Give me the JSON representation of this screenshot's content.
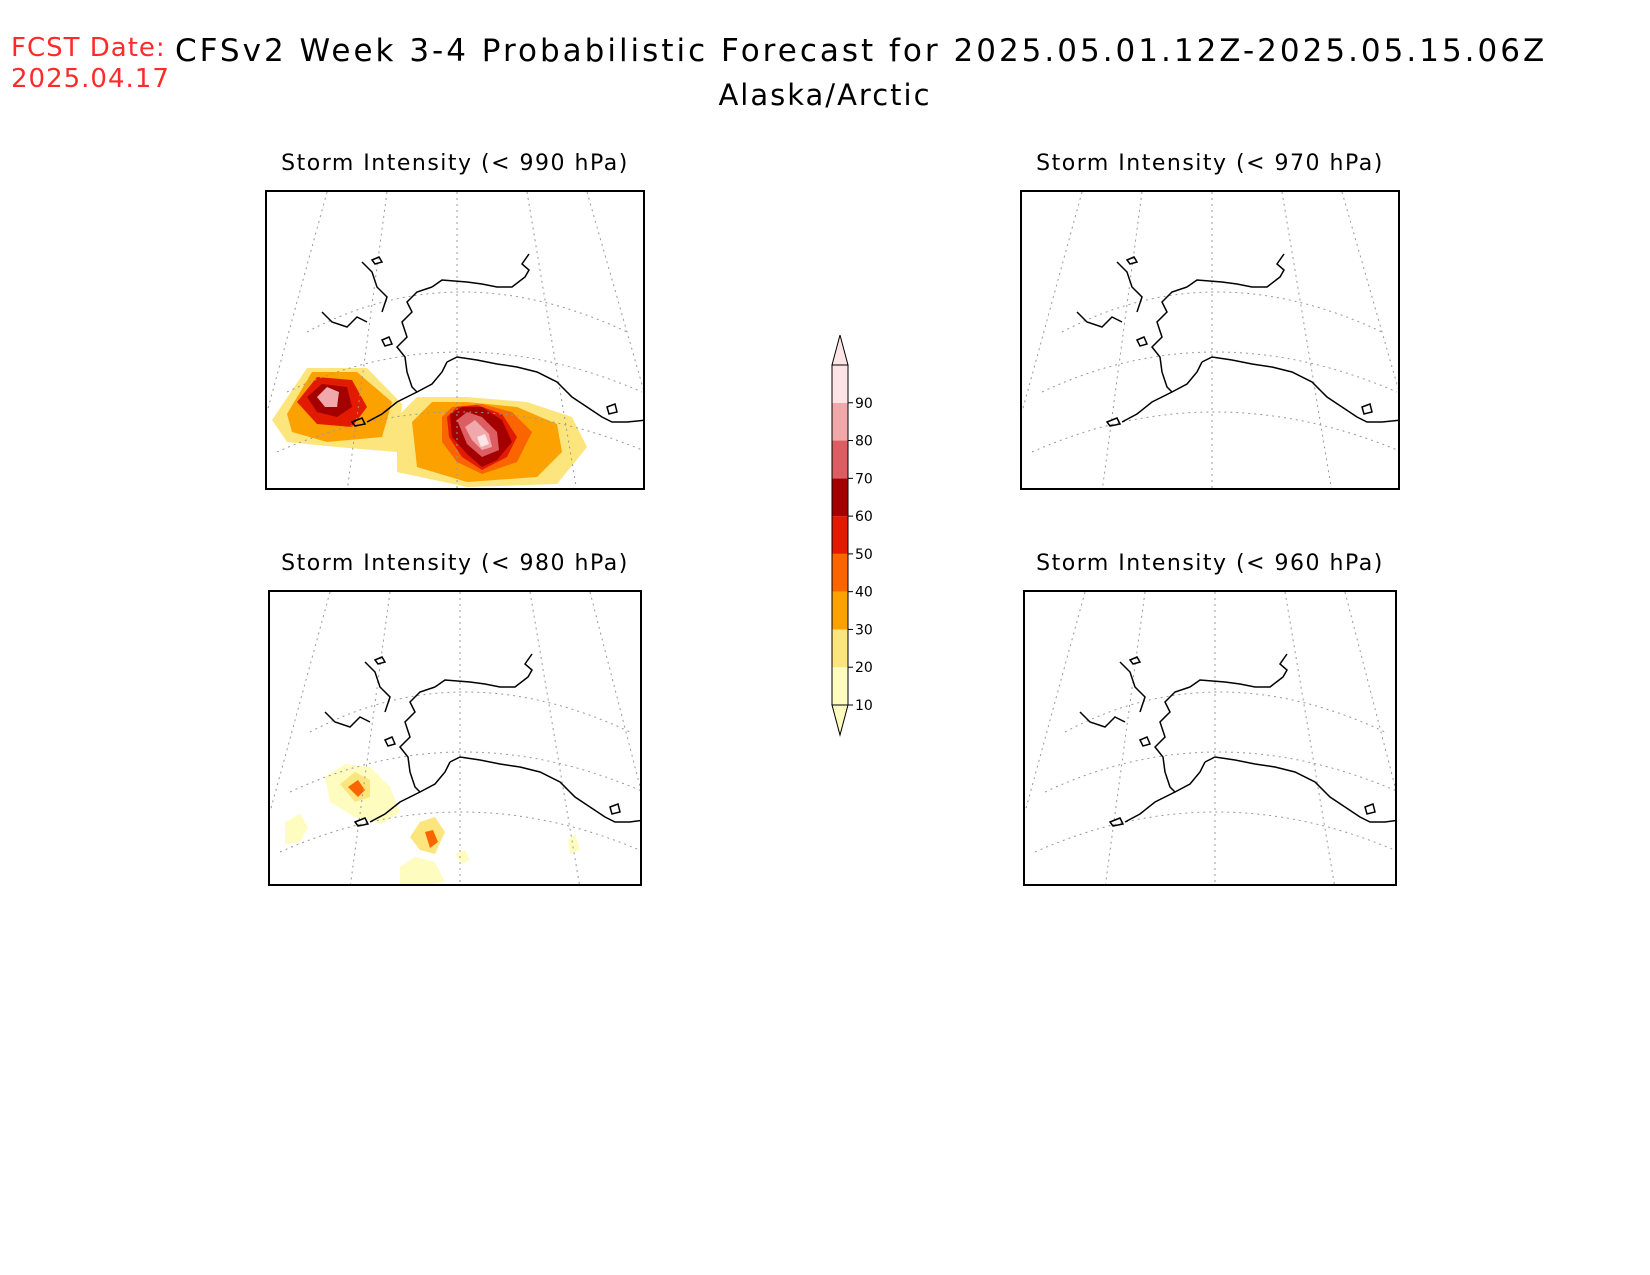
{
  "header": {
    "fcst_label": "FCST Date:",
    "fcst_date": "2025.04.17",
    "title": "CFSv2 Week 3-4 Probabilistic Forecast for 2025.05.01.12Z-2025.05.15.06Z",
    "region": "Alaska/Arctic"
  },
  "panels": [
    {
      "id": "p990",
      "title": "Storm Intensity (< 990 hPa)",
      "has_data": true
    },
    {
      "id": "p970",
      "title": "Storm Intensity (< 970 hPa)",
      "has_data": false
    },
    {
      "id": "p980",
      "title": "Storm Intensity (< 980 hPa)",
      "has_data": true
    },
    {
      "id": "p960",
      "title": "Storm Intensity (< 960 hPa)",
      "has_data": false
    }
  ],
  "colorbar": {
    "levels": [
      "10",
      "20",
      "30",
      "40",
      "50",
      "60",
      "70",
      "80",
      "90"
    ],
    "colors": [
      "#fffcc0",
      "#fde57e",
      "#fca200",
      "#fb6500",
      "#e21a00",
      "#a40000",
      "#dc5e62",
      "#f0a8aa",
      "#fde4e6"
    ]
  }
}
